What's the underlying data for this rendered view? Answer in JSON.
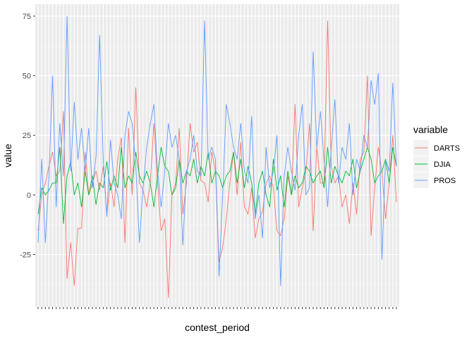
{
  "chart_data": {
    "type": "line",
    "xlabel": "contest_period",
    "ylabel": "value",
    "ylim": [
      -47,
      80
    ],
    "yticks": [
      -25,
      0,
      25,
      50,
      75
    ],
    "grid": true,
    "legend": {
      "title": "variable",
      "placement": "right"
    },
    "x_count": 100,
    "series": [
      {
        "name": "DARTS",
        "color": "#F8766D",
        "values": [
          -15,
          0,
          5,
          12,
          18,
          8,
          10,
          35,
          -35,
          -20,
          -38,
          -14,
          -14,
          18,
          0,
          5,
          10,
          2,
          12,
          -8,
          5,
          -5,
          15,
          24,
          -20,
          28,
          0,
          45,
          5,
          2,
          -5,
          5,
          30,
          5,
          -15,
          -10,
          -43,
          0,
          5,
          28,
          -8,
          5,
          30,
          18,
          22,
          6,
          5,
          -3,
          18,
          10,
          -28,
          -22,
          -10,
          5,
          18,
          0,
          22,
          -5,
          -8,
          3,
          -18,
          -10,
          -7,
          5,
          8,
          3,
          -15,
          -17,
          -10,
          8,
          0,
          38,
          -5,
          3,
          10,
          30,
          -15,
          20,
          5,
          5,
          73,
          12,
          5,
          8,
          -5,
          0,
          -12,
          5,
          -8,
          15,
          18,
          50,
          -17,
          3,
          20,
          10,
          -10,
          5,
          25,
          -3
        ]
      },
      {
        "name": "DJIA",
        "color": "#00BA38",
        "values": [
          -8,
          3,
          0,
          2,
          5,
          5,
          20,
          -12,
          8,
          14,
          0,
          5,
          -5,
          10,
          0,
          8,
          -4,
          5,
          3,
          14,
          2,
          8,
          3,
          20,
          3,
          8,
          5,
          18,
          8,
          5,
          10,
          5,
          -5,
          8,
          20,
          12,
          10,
          0,
          3,
          15,
          5,
          10,
          8,
          15,
          5,
          12,
          8,
          18,
          5,
          10,
          8,
          3,
          8,
          10,
          18,
          5,
          15,
          3,
          12,
          5,
          -8,
          5,
          10,
          0,
          -5,
          15,
          2,
          8,
          -5,
          10,
          0,
          8,
          3,
          5,
          12,
          10,
          5,
          8,
          10,
          3,
          20,
          5,
          12,
          8,
          5,
          10,
          8,
          15,
          3,
          10,
          15,
          20,
          15,
          5,
          8,
          10,
          15,
          5,
          20,
          12
        ]
      },
      {
        "name": "PROS",
        "color": "#619CFF",
        "values": [
          -20,
          15,
          -20,
          8,
          50,
          -5,
          30,
          8,
          75,
          10,
          39,
          15,
          28,
          10,
          28,
          3,
          16,
          67,
          15,
          -9,
          23,
          5,
          0,
          -10,
          25,
          35,
          30,
          12,
          -20,
          3,
          20,
          30,
          38,
          10,
          -5,
          10,
          30,
          20,
          25,
          15,
          -21,
          10,
          15,
          25,
          10,
          8,
          73,
          15,
          20,
          15,
          -34,
          0,
          38,
          30,
          20,
          15,
          30,
          10,
          5,
          33,
          -10,
          0,
          -18,
          20,
          3,
          10,
          25,
          -38,
          8,
          20,
          10,
          2,
          25,
          38,
          0,
          3,
          60,
          20,
          35,
          15,
          -5,
          20,
          40,
          5,
          20,
          15,
          30,
          0,
          15,
          10,
          25,
          20,
          48,
          38,
          51,
          -27,
          15,
          10,
          47,
          12
        ]
      }
    ]
  }
}
